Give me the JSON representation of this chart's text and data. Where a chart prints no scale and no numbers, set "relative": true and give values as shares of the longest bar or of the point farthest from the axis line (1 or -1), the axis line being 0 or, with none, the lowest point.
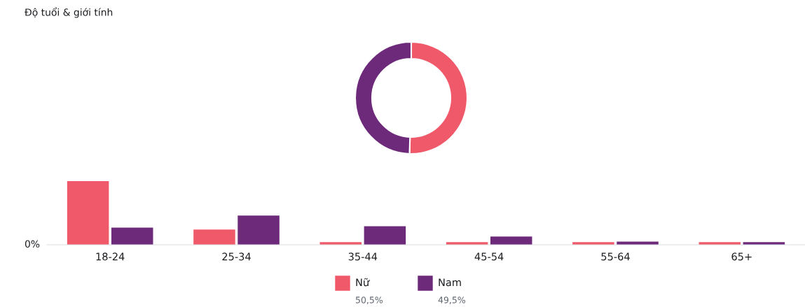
{
  "chart_data": [
    {
      "type": "donut",
      "categories": [
        "Nữ",
        "Nam"
      ],
      "values": [
        50.5,
        49.5
      ],
      "colors": [
        "#f0596a",
        "#6e2a7a"
      ],
      "legend": "bottom",
      "annotations": [
        "50,5%",
        "49,5%"
      ]
    },
    {
      "type": "bar",
      "title": "Độ tuổi & giới tính",
      "relative": true,
      "categories": [
        "18-24",
        "25-34",
        "35-44",
        "45-54",
        "55-64",
        "65+"
      ],
      "annotations": [
        "0%"
      ],
      "series": [
        {
          "color": "#f0596a",
          "values": [
            1,
            0.24,
            0.04,
            0.04,
            0.04,
            0.04
          ]
        },
        {
          "color": "#6e2a7a",
          "values": [
            0.27,
            0.46,
            0.29,
            0.13,
            0.05,
            0.04
          ]
        }
      ]
    }
  ]
}
